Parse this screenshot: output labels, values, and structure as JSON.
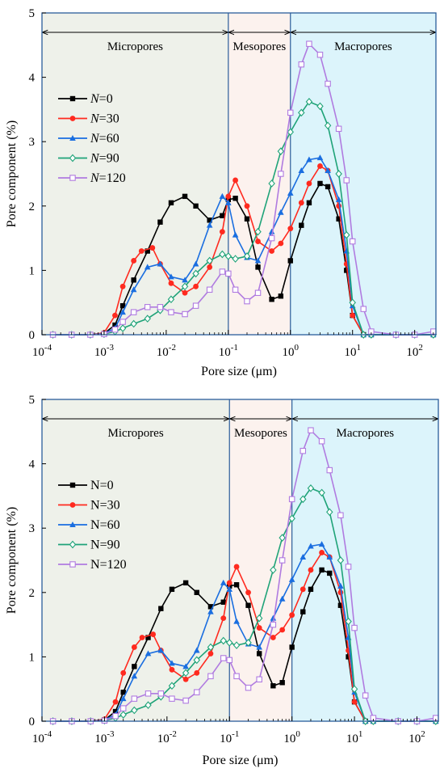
{
  "chart_data": [
    {
      "type": "line",
      "xlabel": "Pore size (μm)",
      "ylabel": "Pore component (%)",
      "x_scale": "log",
      "xlim": [
        0.0001,
        220
      ],
      "ylim": [
        0,
        5
      ],
      "yticks": [
        "0",
        "1",
        "2",
        "3",
        "4",
        "5"
      ],
      "xtick_bases": [
        "10",
        "10",
        "10",
        "10",
        "10",
        "10",
        "10"
      ],
      "xtick_exponents": [
        "-4",
        "-3",
        "-2",
        "-1",
        "0",
        "1",
        "2"
      ],
      "legend_position": "left",
      "legend_style": "italic-N",
      "regions": [
        {
          "label": "Micropores",
          "from": 0.0001,
          "to": 0.1,
          "color": "#eef1ea"
        },
        {
          "label": "Mesopores",
          "from": 0.1,
          "to": 1,
          "color": "#fcf2ee"
        },
        {
          "label": "Macropores",
          "from": 1,
          "to": 220,
          "color": "#dcf4fb"
        }
      ],
      "series": [
        {
          "name_prefix": "N",
          "name_value": "=0",
          "color": "#000000",
          "marker": "square-filled",
          "x": [
            0.00015,
            0.0003,
            0.0006,
            0.001,
            0.0015,
            0.002,
            0.003,
            0.005,
            0.008,
            0.012,
            0.02,
            0.03,
            0.05,
            0.08,
            0.1,
            0.13,
            0.2,
            0.3,
            0.5,
            0.7,
            1,
            1.5,
            2,
            3,
            4,
            6,
            8,
            10,
            15,
            20,
            50,
            100,
            200
          ],
          "y": [
            0,
            0,
            0,
            0.02,
            0.15,
            0.45,
            0.85,
            1.3,
            1.75,
            2.05,
            2.15,
            2.0,
            1.78,
            1.85,
            2.1,
            2.12,
            1.8,
            1.05,
            0.55,
            0.6,
            1.15,
            1.7,
            2.05,
            2.35,
            2.3,
            1.8,
            1.0,
            0.3,
            0,
            0,
            0,
            0,
            0
          ]
        },
        {
          "name_prefix": "N",
          "name_value": "=30",
          "color": "#ff2a1f",
          "marker": "circle-filled",
          "x": [
            0.00015,
            0.0003,
            0.0006,
            0.001,
            0.0015,
            0.002,
            0.003,
            0.004,
            0.006,
            0.008,
            0.012,
            0.02,
            0.03,
            0.05,
            0.08,
            0.1,
            0.13,
            0.2,
            0.3,
            0.5,
            0.7,
            1,
            1.5,
            2,
            3,
            4,
            6,
            8,
            10,
            15,
            20,
            50,
            100,
            200
          ],
          "y": [
            0,
            0,
            0,
            0.03,
            0.3,
            0.75,
            1.15,
            1.3,
            1.35,
            1.1,
            0.8,
            0.65,
            0.75,
            1.05,
            1.6,
            2.15,
            2.4,
            2.0,
            1.45,
            1.3,
            1.42,
            1.65,
            2.05,
            2.35,
            2.62,
            2.55,
            2.0,
            1.1,
            0.3,
            0,
            0,
            0,
            0,
            0
          ]
        },
        {
          "name_prefix": "N",
          "name_value": "=60",
          "color": "#1a6ee0",
          "marker": "triangle-filled",
          "x": [
            0.00015,
            0.0003,
            0.0006,
            0.001,
            0.0015,
            0.002,
            0.003,
            0.005,
            0.008,
            0.012,
            0.02,
            0.03,
            0.05,
            0.08,
            0.1,
            0.13,
            0.2,
            0.3,
            0.5,
            0.7,
            1,
            1.5,
            2,
            3,
            4,
            6,
            8,
            10,
            15,
            20,
            50,
            100,
            200
          ],
          "y": [
            0,
            0,
            0,
            0.02,
            0.1,
            0.35,
            0.7,
            1.05,
            1.1,
            0.9,
            0.85,
            1.1,
            1.7,
            2.15,
            2.05,
            1.55,
            1.2,
            1.15,
            1.6,
            1.9,
            2.2,
            2.55,
            2.72,
            2.75,
            2.55,
            2.1,
            1.3,
            0.45,
            0,
            0,
            0,
            0,
            0
          ]
        },
        {
          "name_prefix": "N",
          "name_value": "=90",
          "color": "#1fa378",
          "marker": "diamond-open",
          "x": [
            0.00015,
            0.0003,
            0.0006,
            0.001,
            0.0015,
            0.002,
            0.003,
            0.005,
            0.008,
            0.012,
            0.02,
            0.03,
            0.05,
            0.08,
            0.1,
            0.13,
            0.2,
            0.3,
            0.5,
            0.7,
            1,
            1.5,
            2,
            3,
            4,
            6,
            8,
            10,
            15,
            20,
            50,
            100,
            200
          ],
          "y": [
            0,
            0,
            0,
            0.01,
            0.05,
            0.1,
            0.17,
            0.25,
            0.38,
            0.55,
            0.75,
            0.95,
            1.15,
            1.25,
            1.22,
            1.18,
            1.22,
            1.6,
            2.35,
            2.85,
            3.15,
            3.45,
            3.62,
            3.55,
            3.25,
            2.5,
            1.55,
            0.5,
            0,
            0,
            0,
            0,
            0
          ]
        },
        {
          "name_prefix": "N",
          "name_value": "=120",
          "color": "#b07be0",
          "marker": "square-open",
          "x": [
            0.00015,
            0.0003,
            0.0006,
            0.001,
            0.0015,
            0.002,
            0.003,
            0.005,
            0.008,
            0.012,
            0.02,
            0.03,
            0.05,
            0.08,
            0.1,
            0.13,
            0.2,
            0.3,
            0.5,
            0.7,
            1,
            1.5,
            2,
            3,
            4,
            6,
            8,
            10,
            15,
            20,
            50,
            100,
            200
          ],
          "y": [
            0,
            0,
            0,
            0.01,
            0.08,
            0.2,
            0.35,
            0.43,
            0.43,
            0.35,
            0.32,
            0.45,
            0.7,
            0.98,
            0.95,
            0.7,
            0.52,
            0.65,
            1.5,
            2.5,
            3.45,
            4.2,
            4.52,
            4.35,
            3.9,
            3.2,
            2.4,
            1.45,
            0.4,
            0.05,
            0,
            0,
            0.05
          ]
        }
      ]
    },
    {
      "type": "line",
      "xlabel": "Pore size (μm)",
      "ylabel": "Pore component (%)",
      "x_scale": "log",
      "xlim": [
        0.0001,
        220
      ],
      "ylim": [
        0,
        5
      ],
      "yticks": [
        "0",
        "1",
        "2",
        "3",
        "4",
        "5"
      ],
      "xtick_bases": [
        "10",
        "10",
        "10",
        "10",
        "10",
        "10",
        "10"
      ],
      "xtick_exponents": [
        "-4",
        "-3",
        "-2",
        "-1",
        "0",
        "1",
        "2"
      ],
      "legend_position": "left",
      "legend_style": "plain",
      "regions": [
        {
          "label": "Micropores",
          "from": 0.0001,
          "to": 0.1,
          "color": "#eef1ea"
        },
        {
          "label": "Mesopores",
          "from": 0.1,
          "to": 1,
          "color": "#fcf2ee"
        },
        {
          "label": "Macropores",
          "from": 1,
          "to": 220,
          "color": "#dcf4fb"
        }
      ],
      "series": [
        {
          "name_prefix": "N",
          "name_value": "=0",
          "color": "#000000",
          "marker": "square-filled",
          "x": [
            0.00015,
            0.0003,
            0.0006,
            0.001,
            0.0015,
            0.002,
            0.003,
            0.005,
            0.008,
            0.012,
            0.02,
            0.03,
            0.05,
            0.08,
            0.1,
            0.13,
            0.2,
            0.3,
            0.5,
            0.7,
            1,
            1.5,
            2,
            3,
            4,
            6,
            8,
            10,
            15,
            20,
            50,
            100,
            200
          ],
          "y": [
            0,
            0,
            0,
            0.02,
            0.15,
            0.45,
            0.85,
            1.3,
            1.75,
            2.05,
            2.15,
            2.0,
            1.78,
            1.85,
            2.1,
            2.12,
            1.8,
            1.05,
            0.55,
            0.6,
            1.15,
            1.7,
            2.05,
            2.35,
            2.3,
            1.8,
            1.0,
            0.3,
            0,
            0,
            0,
            0,
            0
          ]
        },
        {
          "name_prefix": "N",
          "name_value": "=30",
          "color": "#ff2a1f",
          "marker": "circle-filled",
          "x": [
            0.00015,
            0.0003,
            0.0006,
            0.001,
            0.0015,
            0.002,
            0.003,
            0.004,
            0.006,
            0.008,
            0.012,
            0.02,
            0.03,
            0.05,
            0.08,
            0.1,
            0.13,
            0.2,
            0.3,
            0.5,
            0.7,
            1,
            1.5,
            2,
            3,
            4,
            6,
            8,
            10,
            15,
            20,
            50,
            100,
            200
          ],
          "y": [
            0,
            0,
            0,
            0.03,
            0.3,
            0.75,
            1.15,
            1.3,
            1.35,
            1.1,
            0.8,
            0.65,
            0.75,
            1.05,
            1.6,
            2.15,
            2.4,
            2.0,
            1.45,
            1.3,
            1.42,
            1.65,
            2.05,
            2.35,
            2.62,
            2.55,
            2.0,
            1.1,
            0.3,
            0,
            0,
            0,
            0,
            0
          ]
        },
        {
          "name_prefix": "N",
          "name_value": "=60",
          "color": "#1a6ee0",
          "marker": "triangle-filled",
          "x": [
            0.00015,
            0.0003,
            0.0006,
            0.001,
            0.0015,
            0.002,
            0.003,
            0.005,
            0.008,
            0.012,
            0.02,
            0.03,
            0.05,
            0.08,
            0.1,
            0.13,
            0.2,
            0.3,
            0.5,
            0.7,
            1,
            1.5,
            2,
            3,
            4,
            6,
            8,
            10,
            15,
            20,
            50,
            100,
            200
          ],
          "y": [
            0,
            0,
            0,
            0.02,
            0.1,
            0.35,
            0.7,
            1.05,
            1.1,
            0.9,
            0.85,
            1.1,
            1.7,
            2.15,
            2.05,
            1.55,
            1.2,
            1.15,
            1.6,
            1.9,
            2.2,
            2.55,
            2.72,
            2.75,
            2.55,
            2.1,
            1.3,
            0.45,
            0,
            0,
            0,
            0,
            0
          ]
        },
        {
          "name_prefix": "N",
          "name_value": "=90",
          "color": "#1fa378",
          "marker": "diamond-open",
          "x": [
            0.00015,
            0.0003,
            0.0006,
            0.001,
            0.0015,
            0.002,
            0.003,
            0.005,
            0.008,
            0.012,
            0.02,
            0.03,
            0.05,
            0.08,
            0.1,
            0.13,
            0.2,
            0.3,
            0.5,
            0.7,
            1,
            1.5,
            2,
            3,
            4,
            6,
            8,
            10,
            15,
            20,
            50,
            100,
            200
          ],
          "y": [
            0,
            0,
            0,
            0.01,
            0.05,
            0.1,
            0.17,
            0.25,
            0.38,
            0.55,
            0.75,
            0.95,
            1.15,
            1.25,
            1.22,
            1.18,
            1.22,
            1.6,
            2.35,
            2.85,
            3.15,
            3.45,
            3.62,
            3.55,
            3.25,
            2.5,
            1.55,
            0.5,
            0,
            0,
            0,
            0,
            0
          ]
        },
        {
          "name_prefix": "N",
          "name_value": "=120",
          "color": "#b07be0",
          "marker": "square-open",
          "x": [
            0.00015,
            0.0003,
            0.0006,
            0.001,
            0.0015,
            0.002,
            0.003,
            0.005,
            0.008,
            0.012,
            0.02,
            0.03,
            0.05,
            0.08,
            0.1,
            0.13,
            0.2,
            0.3,
            0.5,
            0.7,
            1,
            1.5,
            2,
            3,
            4,
            6,
            8,
            10,
            15,
            20,
            50,
            100,
            200
          ],
          "y": [
            0,
            0,
            0,
            0.01,
            0.08,
            0.2,
            0.35,
            0.43,
            0.43,
            0.35,
            0.32,
            0.45,
            0.7,
            0.98,
            0.95,
            0.7,
            0.52,
            0.65,
            1.5,
            2.5,
            3.45,
            4.2,
            4.52,
            4.35,
            3.9,
            3.2,
            2.4,
            1.45,
            0.4,
            0.05,
            0,
            0,
            0.05
          ]
        }
      ]
    }
  ]
}
